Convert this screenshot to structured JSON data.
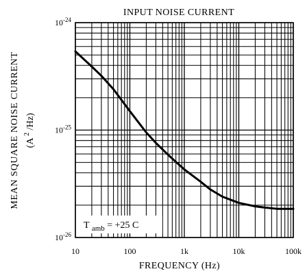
{
  "chart_data": {
    "type": "line",
    "title": "INPUT NOISE CURRENT",
    "xlabel": "FREQUENCY (Hz)",
    "ylabel": {
      "line1": "MEAN SQUARE NOISE CURRENT",
      "line2_prefix": "(A",
      "line2_sup": "2",
      "line2_suffix": "/Hz)"
    },
    "x_scale": "log",
    "y_scale": "log",
    "xlim": [
      10,
      100000
    ],
    "ylim": [
      1e-26,
      1e-24
    ],
    "x_ticks": [
      {
        "value": 10,
        "label": "10"
      },
      {
        "value": 100,
        "label": "100"
      },
      {
        "value": 1000,
        "label": "1k"
      },
      {
        "value": 10000,
        "label": "10k"
      },
      {
        "value": 100000,
        "label": "100k"
      }
    ],
    "y_ticks": [
      {
        "value": 1e-24,
        "base": "10",
        "exp": "-24"
      },
      {
        "value": 1e-25,
        "base": "10",
        "exp": "-25"
      },
      {
        "value": 1e-26,
        "base": "10",
        "exp": "-26"
      }
    ],
    "grid": true,
    "annotation": {
      "main": "T",
      "sub": "amb",
      "rest": " = +25 C"
    },
    "series": [
      {
        "x": [
          10,
          20,
          30,
          50,
          100,
          200,
          300,
          500,
          1000,
          2000,
          3000,
          5000,
          10000,
          20000,
          30000,
          50000,
          100000
        ],
        "y": [
          5.4e-25,
          3.9e-25,
          3.2e-25,
          2.4e-25,
          1.5e-25,
          9.5e-26,
          7.6e-26,
          5.9e-26,
          4.3e-26,
          3.3e-26,
          2.8e-26,
          2.4e-26,
          2.1e-26,
          1.95e-26,
          1.9e-26,
          1.85e-26,
          1.85e-26
        ]
      }
    ],
    "colors": {
      "line": "#000000",
      "grid": "#000000",
      "background": "#ffffff"
    }
  }
}
